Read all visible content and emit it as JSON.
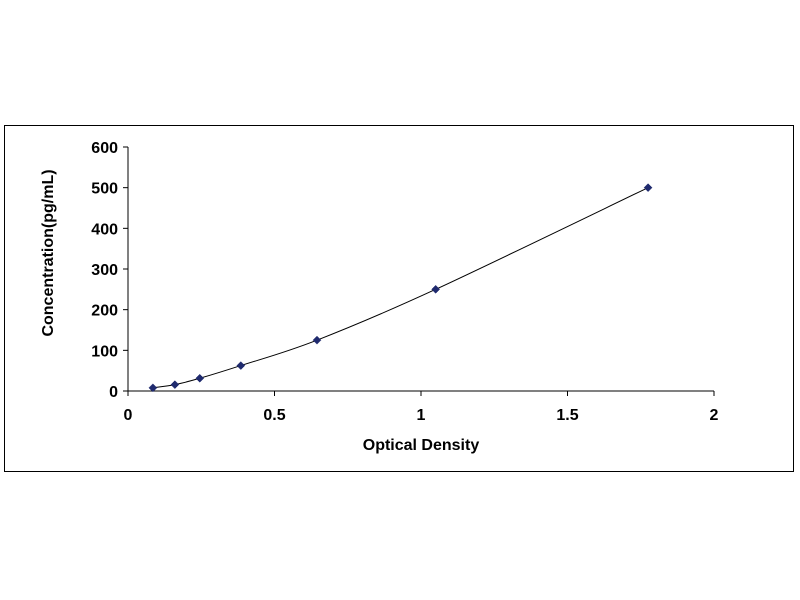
{
  "chart_data": {
    "type": "scatter",
    "title": "",
    "xlabel": "Optical Density",
    "ylabel": "Concentration(pg/mL)",
    "xlim": [
      0,
      2
    ],
    "ylim": [
      0,
      600
    ],
    "x_ticks": [
      "0",
      "0.5",
      "1",
      "1.5",
      "2"
    ],
    "y_ticks": [
      "0",
      "100",
      "200",
      "300",
      "400",
      "500",
      "600"
    ],
    "grid": false,
    "legend": "none",
    "marker": "diamond",
    "smooth_line": true,
    "color": "#1f2a6e",
    "x": [
      0.085,
      0.16,
      0.245,
      0.385,
      0.645,
      1.05,
      1.775
    ],
    "y": [
      7.8,
      15.6,
      31.25,
      62.5,
      125,
      250,
      500
    ]
  }
}
